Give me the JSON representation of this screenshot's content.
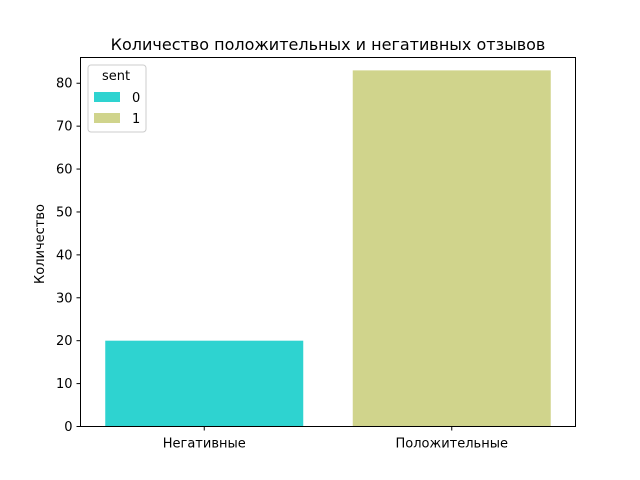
{
  "chart_data": {
    "type": "bar",
    "title": "Количество положительных и негативных отзывов",
    "xlabel": "",
    "ylabel": "Количество",
    "categories": [
      "Негативные",
      "Положительные"
    ],
    "series": [
      {
        "name": "0",
        "values": [
          20,
          null
        ],
        "color": "#2ED3D0"
      },
      {
        "name": "1",
        "values": [
          null,
          83
        ],
        "color": "#D0D48C"
      }
    ],
    "ylim": [
      0,
      86
    ],
    "yticks": [
      0,
      10,
      20,
      30,
      40,
      50,
      60,
      70,
      80
    ],
    "legend": {
      "title": "sent",
      "position": "top-left"
    },
    "grid": false
  }
}
